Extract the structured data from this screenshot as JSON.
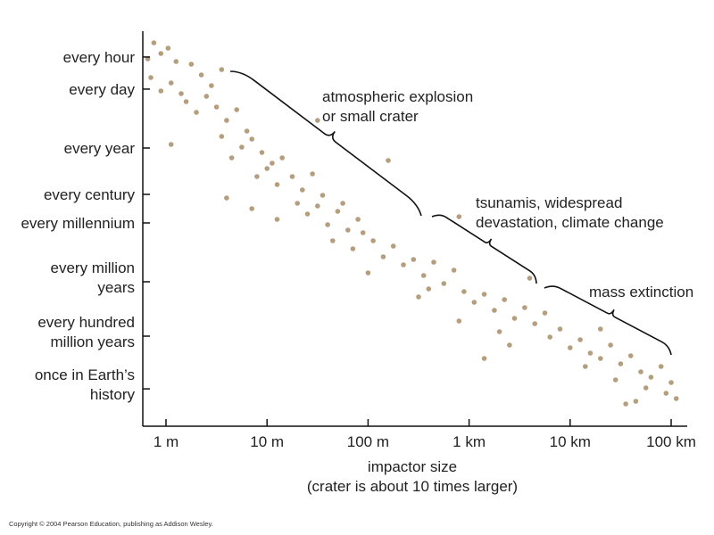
{
  "chart_data": {
    "type": "scatter",
    "title": "",
    "xlabel_lines": [
      "impactor size",
      "(crater is about 10 times larger)"
    ],
    "ylabel": "",
    "x_scale": "log",
    "x_ticks": [
      "1 m",
      "10 m",
      "100 m",
      "1 km",
      "10 km",
      "100 km"
    ],
    "x_tick_values_m": [
      1,
      10,
      100,
      1000,
      10000,
      100000
    ],
    "y_ticks": [
      {
        "lines": [
          "every hour"
        ],
        "period_years": 0.000114
      },
      {
        "lines": [
          "every day"
        ],
        "period_years": 0.00274
      },
      {
        "lines": [
          "every year"
        ],
        "period_years": 1
      },
      {
        "lines": [
          "every century"
        ],
        "period_years": 100
      },
      {
        "lines": [
          "every millennium"
        ],
        "period_years": 1000
      },
      {
        "lines": [
          "every million",
          "years"
        ],
        "period_years": 1000000
      },
      {
        "lines": [
          "every hundred",
          "million years"
        ],
        "period_years": 100000000
      },
      {
        "lines": [
          "once in Earth’s",
          "history"
        ],
        "period_years": 4500000000
      }
    ],
    "y_order": "frequency decreases downward",
    "grid": false,
    "annotations": [
      {
        "lines": [
          "atmospheric explosion",
          "or small crater"
        ],
        "range_x": [
          "4 m",
          "300 m"
        ]
      },
      {
        "lines": [
          "tsunamis, widespread",
          "devastation, climate change"
        ],
        "range_x": [
          "400 m",
          "5 km"
        ]
      },
      {
        "lines": [
          "mass extinction"
        ],
        "range_x": [
          "6 km",
          "100 km"
        ]
      }
    ],
    "point_color": "#b59e7d",
    "trend": "log size increases linearly with log recurrence interval",
    "points_log10": [
      [
        -0.18,
        12.3
      ],
      [
        -0.12,
        12.9
      ],
      [
        -0.05,
        12.5
      ],
      [
        0.02,
        12.7
      ],
      [
        0.1,
        12.2
      ],
      [
        -0.15,
        11.6
      ],
      [
        -0.05,
        11.1
      ],
      [
        0.05,
        11.4
      ],
      [
        0.15,
        11.0
      ],
      [
        0.25,
        12.1
      ],
      [
        0.35,
        11.7
      ],
      [
        0.45,
        11.3
      ],
      [
        0.55,
        11.9
      ],
      [
        0.2,
        10.7
      ],
      [
        0.3,
        10.3
      ],
      [
        0.4,
        10.9
      ],
      [
        0.5,
        10.5
      ],
      [
        0.6,
        10.0
      ],
      [
        0.7,
        10.4
      ],
      [
        0.8,
        9.6
      ],
      [
        0.05,
        9.1
      ],
      [
        0.55,
        9.4
      ],
      [
        0.65,
        8.6
      ],
      [
        0.75,
        9.0
      ],
      [
        0.85,
        9.3
      ],
      [
        0.95,
        8.8
      ],
      [
        1.05,
        8.4
      ],
      [
        0.9,
        7.9
      ],
      [
        1.0,
        8.2
      ],
      [
        1.1,
        7.6
      ],
      [
        1.15,
        8.6
      ],
      [
        1.25,
        7.9
      ],
      [
        1.35,
        7.4
      ],
      [
        1.45,
        8.0
      ],
      [
        1.55,
        7.2
      ],
      [
        0.6,
        7.1
      ],
      [
        1.1,
        6.3
      ],
      [
        1.3,
        6.9
      ],
      [
        1.4,
        6.5
      ],
      [
        1.5,
        6.8
      ],
      [
        1.6,
        6.1
      ],
      [
        1.7,
        6.6
      ],
      [
        1.8,
        5.9
      ],
      [
        1.9,
        6.3
      ],
      [
        1.65,
        5.5
      ],
      [
        1.75,
        6.9
      ],
      [
        1.85,
        5.2
      ],
      [
        1.95,
        5.8
      ],
      [
        2.05,
        5.5
      ],
      [
        2.15,
        4.9
      ],
      [
        2.25,
        5.3
      ],
      [
        2.35,
        4.6
      ],
      [
        2.0,
        4.3
      ],
      [
        2.45,
        4.8
      ],
      [
        2.55,
        4.2
      ],
      [
        2.65,
        4.7
      ],
      [
        2.75,
        3.9
      ],
      [
        2.85,
        4.4
      ],
      [
        2.5,
        3.4
      ],
      [
        2.6,
        3.7
      ],
      [
        2.95,
        3.6
      ],
      [
        3.05,
        3.2
      ],
      [
        3.15,
        3.5
      ],
      [
        3.25,
        2.9
      ],
      [
        2.9,
        2.5
      ],
      [
        3.35,
        3.3
      ],
      [
        3.45,
        2.6
      ],
      [
        3.55,
        3.0
      ],
      [
        3.65,
        2.4
      ],
      [
        3.3,
        2.1
      ],
      [
        3.75,
        2.8
      ],
      [
        3.4,
        1.6
      ],
      [
        3.8,
        1.9
      ],
      [
        3.9,
        2.2
      ],
      [
        4.0,
        1.5
      ],
      [
        4.1,
        1.8
      ],
      [
        4.2,
        1.3
      ],
      [
        4.3,
        1.1
      ],
      [
        4.15,
        0.8
      ],
      [
        4.4,
        1.6
      ],
      [
        4.5,
        0.9
      ],
      [
        4.6,
        1.2
      ],
      [
        4.7,
        0.6
      ],
      [
        4.45,
        0.3
      ],
      [
        4.8,
        0.4
      ],
      [
        4.9,
        0.8
      ],
      [
        5.0,
        0.2
      ],
      [
        4.75,
        0.0
      ],
      [
        5.05,
        -0.4
      ],
      [
        4.95,
        -0.2
      ],
      [
        4.55,
        -0.6
      ],
      [
        2.2,
        8.5
      ],
      [
        2.9,
        6.4
      ],
      [
        3.6,
        4.1
      ],
      [
        4.3,
        2.2
      ],
      [
        1.5,
        10.0
      ],
      [
        0.85,
        6.7
      ],
      [
        3.15,
        1.1
      ],
      [
        4.65,
        -0.5
      ]
    ]
  }
}
